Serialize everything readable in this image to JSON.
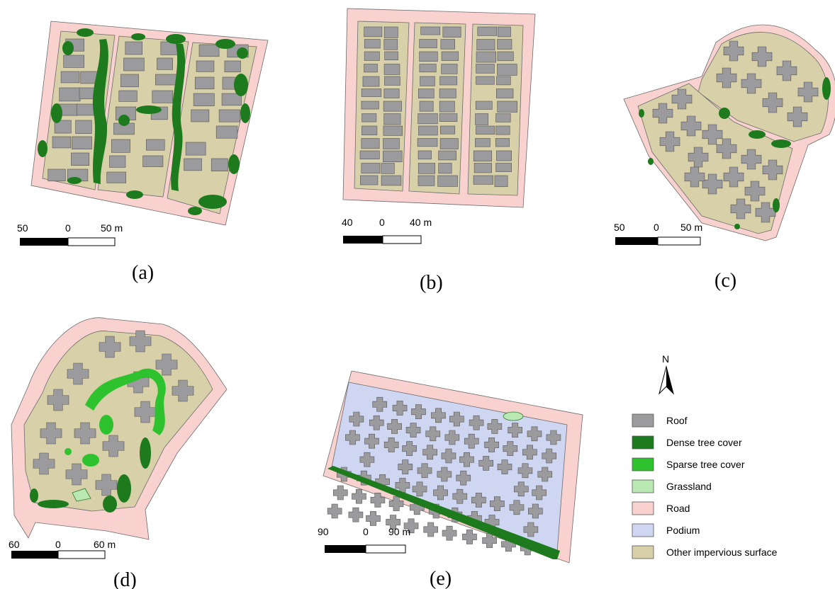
{
  "colors": {
    "roof": "#9b9b9e",
    "dense_tree": "#1d7a1d",
    "sparse_tree": "#2ec32e",
    "grassland": "#b9e8b2",
    "road": "#f9d2d0",
    "podium": "#cfd6f2",
    "other_impervious": "#d8d0a8"
  },
  "panels": [
    {
      "id": "a",
      "caption": "(a)",
      "scale": {
        "left": "50",
        "mid": "0",
        "right": "50 m"
      }
    },
    {
      "id": "b",
      "caption": "(b)",
      "scale": {
        "left": "40",
        "mid": "0",
        "right": "40 m"
      }
    },
    {
      "id": "c",
      "caption": "(c)",
      "scale": {
        "left": "50",
        "mid": "0",
        "right": "50 m"
      }
    },
    {
      "id": "d",
      "caption": "(d)",
      "scale": {
        "left": "60",
        "mid": "0",
        "right": "60 m"
      }
    },
    {
      "id": "e",
      "caption": "(e)",
      "scale": {
        "left": "90",
        "mid": "0",
        "right": "90 m"
      }
    }
  ],
  "north_arrow": {
    "label": "N"
  },
  "legend": {
    "items": [
      {
        "label": "Roof",
        "color": "#9b9b9e"
      },
      {
        "label": "Dense tree cover",
        "color": "#1d7a1d"
      },
      {
        "label": "Sparse tree cover",
        "color": "#2ec32e"
      },
      {
        "label": "Grassland",
        "color": "#b9e8b2"
      },
      {
        "label": "Road",
        "color": "#f9d2d0"
      },
      {
        "label": "Podium",
        "color": "#cfd6f2"
      },
      {
        "label": "Other impervious surface",
        "color": "#d8d0a8"
      }
    ]
  }
}
